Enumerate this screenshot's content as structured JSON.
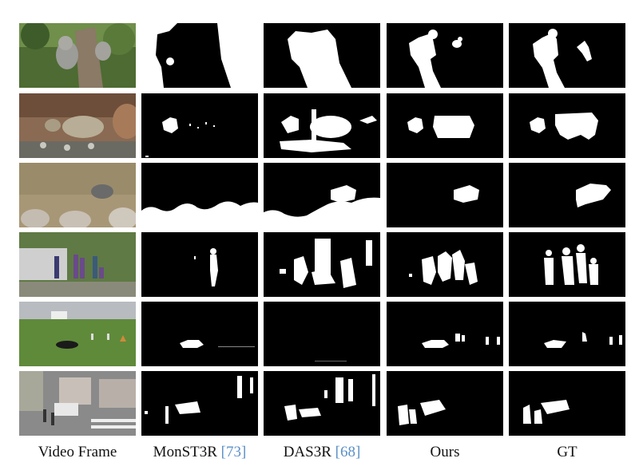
{
  "columns": [
    {
      "label": "Video Frame",
      "cite": ""
    },
    {
      "label": "MonST3R",
      "cite": "73"
    },
    {
      "label": "DAS3R",
      "cite": "68"
    },
    {
      "label": "Ours",
      "cite": ""
    },
    {
      "label": "GT",
      "cite": ""
    }
  ],
  "colors": {
    "mask_bg": "#000000",
    "mask_fg": "#ffffff",
    "cite": "#5b8fc7"
  }
}
